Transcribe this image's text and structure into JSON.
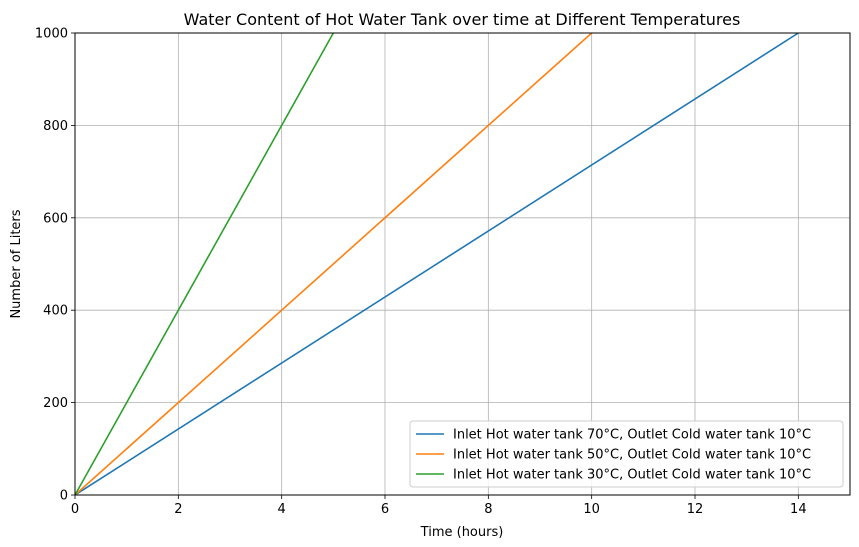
{
  "chart_data": {
    "type": "line",
    "title": "Water Content of Hot Water Tank over time at Different Temperatures",
    "xlabel": "Time (hours)",
    "ylabel": "Number of Liters",
    "xlim": [
      0,
      15
    ],
    "ylim": [
      0,
      1000
    ],
    "xticks": [
      "0",
      "2",
      "4",
      "6",
      "8",
      "10",
      "12",
      "14"
    ],
    "yticks": [
      "0",
      "200",
      "400",
      "600",
      "800",
      "1000"
    ],
    "grid": true,
    "legend_position": "lower right",
    "series": [
      {
        "name": "Inlet Hot water tank 70°C, Outlet Cold water tank 10°C",
        "color": "#1f77b4",
        "x": [
          0,
          14
        ],
        "y": [
          0,
          1000
        ]
      },
      {
        "name": "Inlet Hot water tank 50°C, Outlet Cold water tank 10°C",
        "color": "#ff7f0e",
        "x": [
          0,
          10
        ],
        "y": [
          0,
          1000
        ]
      },
      {
        "name": "Inlet Hot water tank 30°C, Outlet Cold water tank 10°C",
        "color": "#2ca02c",
        "x": [
          0,
          5
        ],
        "y": [
          0,
          1000
        ]
      }
    ]
  }
}
